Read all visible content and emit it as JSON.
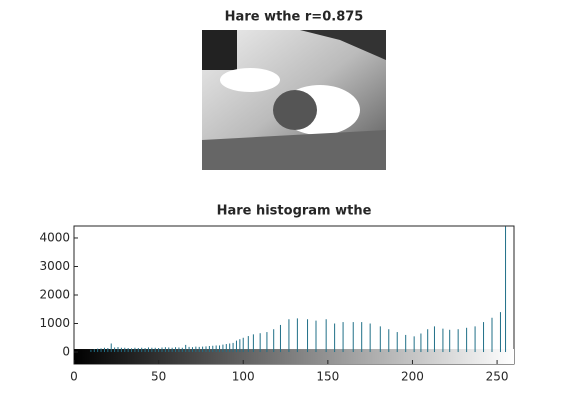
{
  "chart_data": [
    {
      "type": "image",
      "title": "Hare wthe r=0.875"
    },
    {
      "type": "stem",
      "title": "Hare histogram wthe",
      "color": "#1f6f87",
      "x": [
        10,
        12,
        14,
        16,
        18,
        20,
        22,
        24,
        26,
        28,
        30,
        32,
        34,
        36,
        38,
        40,
        42,
        44,
        46,
        48,
        50,
        52,
        54,
        56,
        58,
        60,
        62,
        64,
        66,
        68,
        70,
        72,
        74,
        76,
        78,
        80,
        82,
        84,
        86,
        88,
        90,
        92,
        94,
        96,
        98,
        100,
        103,
        106,
        110,
        114,
        118,
        122,
        127,
        132,
        138,
        143,
        149,
        154,
        159,
        165,
        170,
        175,
        181,
        186,
        191,
        196,
        201,
        205,
        209,
        213,
        218,
        222,
        227,
        232,
        237,
        242,
        247,
        252,
        255
      ],
      "values": [
        80,
        100,
        120,
        130,
        150,
        140,
        300,
        160,
        170,
        150,
        150,
        140,
        130,
        150,
        140,
        150,
        140,
        160,
        150,
        150,
        140,
        160,
        170,
        160,
        150,
        170,
        160,
        150,
        250,
        180,
        170,
        190,
        180,
        190,
        200,
        210,
        220,
        230,
        230,
        260,
        280,
        300,
        320,
        400,
        450,
        500,
        560,
        620,
        660,
        700,
        800,
        950,
        1150,
        1180,
        1150,
        1100,
        1150,
        1000,
        1050,
        1050,
        1050,
        1000,
        900,
        800,
        700,
        600,
        550,
        650,
        800,
        900,
        820,
        780,
        800,
        850,
        900,
        1050,
        1200,
        1400,
        4400
      ],
      "xlim": [
        0,
        260
      ],
      "ylim": [
        -420,
        4420
      ],
      "xticks": [
        0,
        50,
        100,
        150,
        200,
        250
      ],
      "yticks": [
        0,
        1000,
        2000,
        3000,
        4000
      ]
    }
  ]
}
